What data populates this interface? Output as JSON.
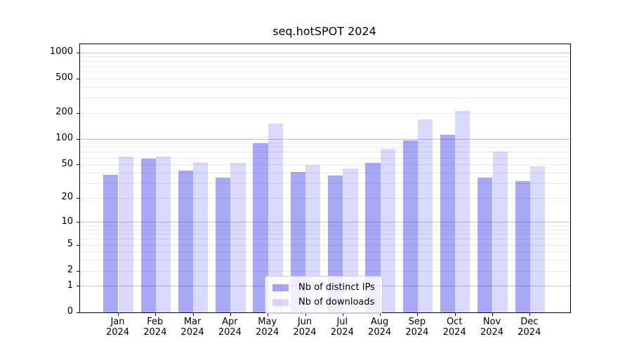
{
  "chart_data": {
    "type": "bar",
    "title": "seq.hotSPOT 2024",
    "categories": [
      "Jan 2024",
      "Feb 2024",
      "Mar 2024",
      "Apr 2024",
      "May 2024",
      "Jun 2024",
      "Jul 2024",
      "Aug 2024",
      "Sep 2024",
      "Oct 2024",
      "Nov 2024",
      "Dec 2024"
    ],
    "series": [
      {
        "name": "Nb of distinct IPs",
        "color": "rgba(0,0,230,0.34)",
        "values": [
          38,
          59,
          43,
          35,
          89,
          41,
          37,
          53,
          96,
          113,
          35,
          32
        ]
      },
      {
        "name": "Nb of downloads",
        "color": "rgba(0,0,230,0.15)",
        "values": [
          62,
          62,
          54,
          53,
          152,
          50,
          45,
          77,
          170,
          213,
          71,
          48
        ]
      }
    ],
    "xlabel": "",
    "ylabel": "",
    "yscale": "log1p",
    "ylim": [
      0,
      1260
    ],
    "yticks": [
      0,
      1,
      2,
      5,
      10,
      20,
      50,
      100,
      200,
      500,
      1000
    ],
    "grid": "horizontal, major at powers of ten plus faint minors",
    "legend_position": "inside lower-center"
  }
}
